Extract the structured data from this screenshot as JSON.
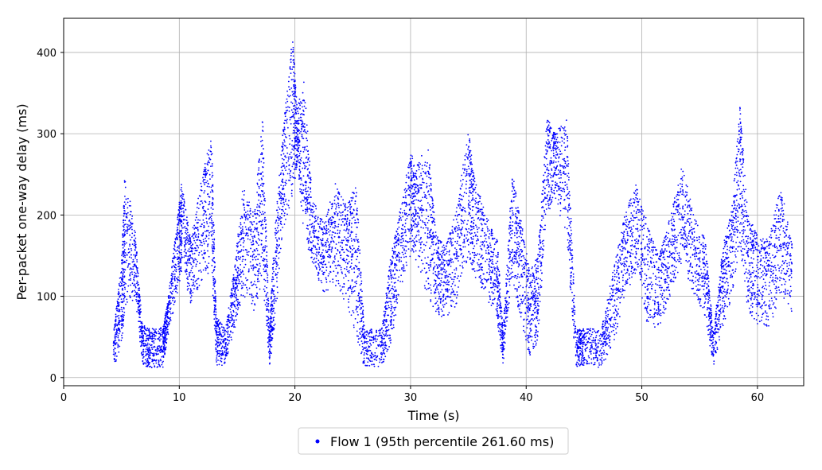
{
  "chart_data": {
    "type": "scatter",
    "title": "",
    "xlabel": "Time (s)",
    "ylabel": "Per-packet one-way delay (ms)",
    "xlim": [
      0,
      64
    ],
    "ylim": [
      -10,
      442
    ],
    "xticks": [
      0,
      10,
      20,
      30,
      40,
      50,
      60
    ],
    "yticks": [
      0,
      100,
      200,
      300,
      400
    ],
    "grid": true,
    "legend_position": "bottom-center, below axes",
    "series": [
      {
        "name": "Flow 1 (95th percentile 261.60 ms)",
        "color": "#0000ff",
        "marker": "small dot",
        "summary_envelope": {
          "note": "dense per-packet scatter; values below are an approximate upper/lower envelope of the point cloud",
          "x": [
            4.3,
            5.0,
            5.3,
            6.2,
            6.8,
            7.5,
            8.6,
            9.0,
            9.8,
            10.2,
            11.0,
            12.0,
            12.8,
            13.2,
            14.0,
            14.8,
            15.5,
            16.5,
            17.2,
            17.8,
            18.2,
            19.0,
            19.8,
            20.2,
            20.8,
            21.5,
            22.5,
            23.5,
            24.5,
            25.3,
            26.0,
            27.5,
            28.3,
            29.0,
            30.0,
            30.5,
            31.5,
            32.2,
            33.0,
            34.0,
            35.0,
            35.5,
            36.5,
            37.5,
            38.0,
            38.8,
            39.5,
            40.3,
            41.0,
            41.8,
            42.5,
            43.5,
            44.3,
            45.0,
            46.5,
            47.5,
            48.5,
            49.5,
            50.5,
            51.5,
            52.5,
            53.5,
            54.5,
            55.5,
            56.2,
            57.0,
            57.8,
            58.5,
            59.2,
            60.0,
            61.0,
            62.0,
            63.0
          ],
          "y_max": [
            55,
            140,
            255,
            180,
            65,
            60,
            62,
            95,
            190,
            240,
            170,
            250,
            300,
            75,
            60,
            140,
            235,
            200,
            325,
            60,
            170,
            310,
            420,
            330,
            370,
            220,
            190,
            240,
            210,
            240,
            60,
            60,
            150,
            200,
            280,
            260,
            290,
            180,
            160,
            210,
            310,
            250,
            200,
            170,
            55,
            255,
            200,
            130,
            150,
            320,
            300,
            320,
            60,
            60,
            60,
            130,
            200,
            240,
            190,
            150,
            200,
            265,
            200,
            170,
            55,
            160,
            210,
            335,
            200,
            175,
            170,
            240,
            170
          ],
          "y_min": [
            10,
            40,
            80,
            100,
            15,
            12,
            12,
            50,
            100,
            130,
            90,
            120,
            130,
            15,
            15,
            60,
            100,
            80,
            120,
            15,
            50,
            180,
            220,
            260,
            170,
            140,
            100,
            110,
            90,
            50,
            12,
            12,
            40,
            100,
            150,
            140,
            100,
            80,
            70,
            90,
            150,
            120,
            100,
            70,
            15,
            120,
            70,
            25,
            40,
            200,
            220,
            170,
            12,
            12,
            12,
            40,
            90,
            130,
            60,
            60,
            100,
            140,
            100,
            70,
            12,
            60,
            100,
            160,
            80,
            60,
            60,
            100,
            80
          ]
        }
      }
    ]
  }
}
